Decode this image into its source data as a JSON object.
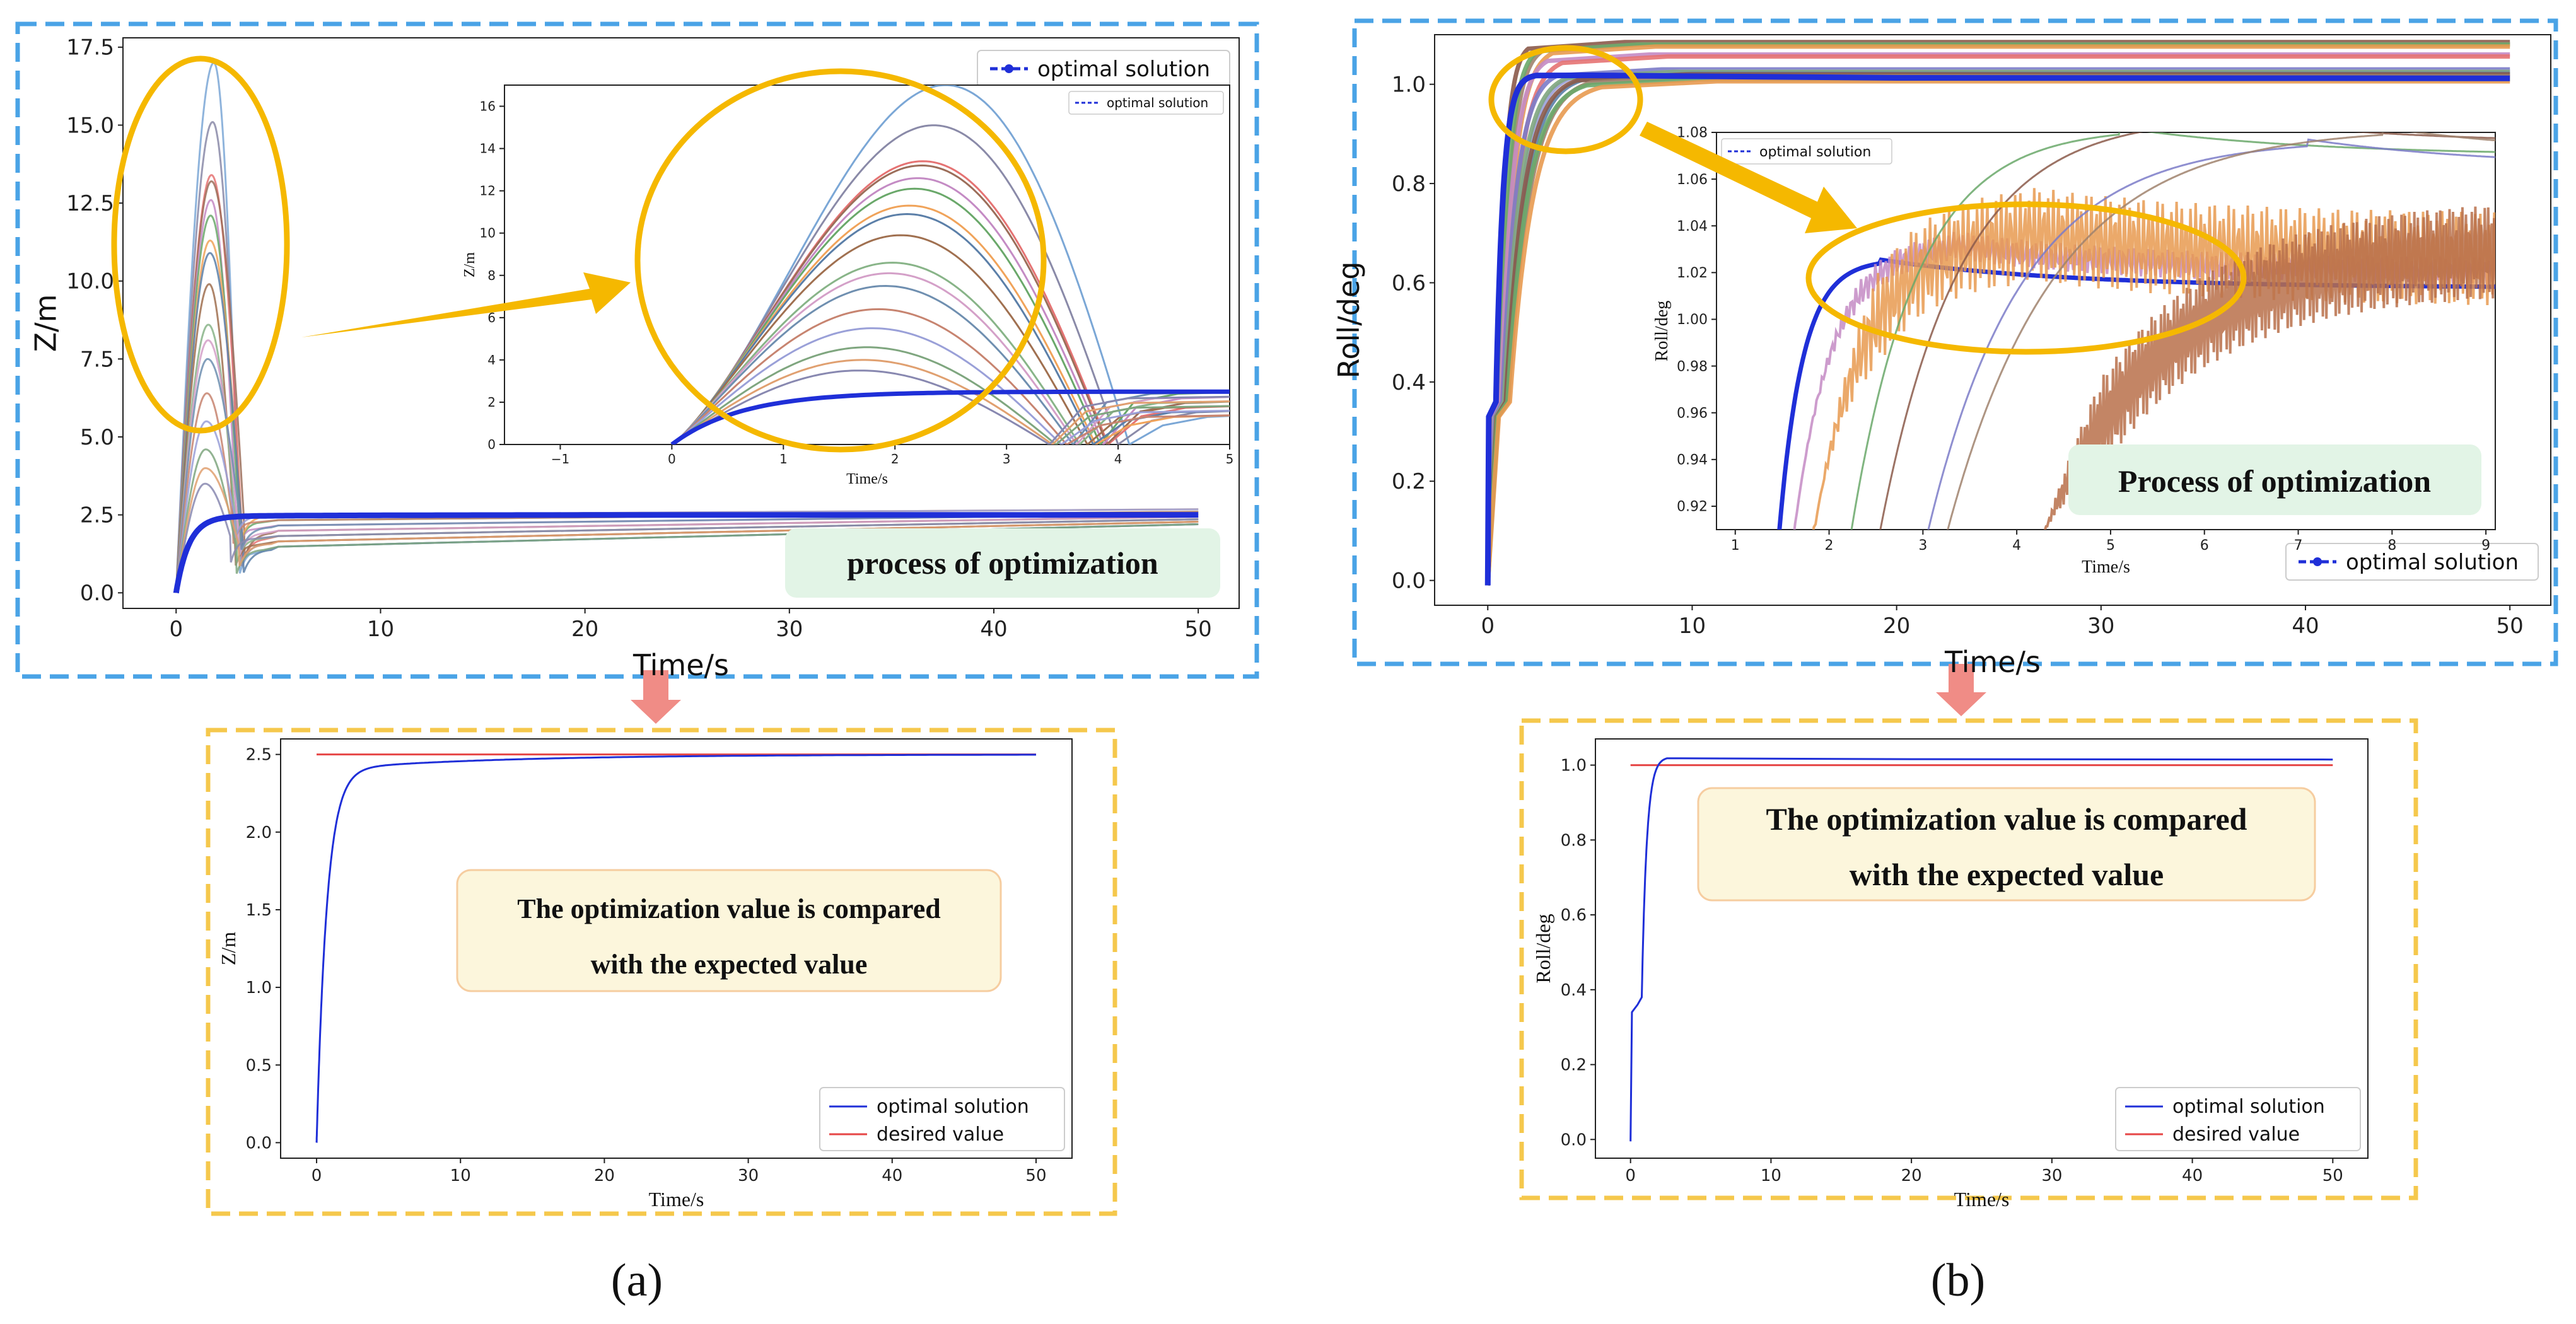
{
  "colors": {
    "dashed_blue": "#4aa3e6",
    "dashed_gold": "#f5c84c",
    "ellipse": "#f5b800",
    "arrow": "#f5b800",
    "down_arrow": "#f08c86",
    "optimal": "#1f2fd8",
    "desired": "#e64646",
    "green_box": "#e2f4e6",
    "yellow_box": "#fcf6dc",
    "yellow_box_border": "#f6cda0"
  },
  "panel_labels": {
    "a": "(a)",
    "b": "(b)"
  },
  "chart_data": [
    {
      "id": "a_top",
      "type": "line",
      "title": "",
      "xlabel": "Time/s",
      "ylabel": "Z/m",
      "xlim": [
        -2.6,
        52
      ],
      "ylim": [
        -0.5,
        17.8
      ],
      "xticks": [
        0,
        10,
        20,
        30,
        40,
        50
      ],
      "yticks": [
        0.0,
        2.5,
        5.0,
        7.5,
        10.0,
        12.5,
        15.0,
        17.5
      ],
      "ytick_labels": [
        "0.0",
        "2.5",
        "5.0",
        "7.5",
        "10.0",
        "12.5",
        "15.0",
        "17.5"
      ],
      "legend": [
        "optimal solution"
      ],
      "annotation": "process of optimization",
      "series": [
        {
          "name": "optimal solution",
          "final": 2.5
        }
      ],
      "candidate_peaks": [
        17.0,
        15.1,
        13.4,
        13.2,
        12.6,
        12.1,
        11.3,
        10.9,
        9.9,
        8.6,
        8.1,
        7.5,
        6.4,
        5.5,
        4.6,
        4.0,
        3.5
      ]
    },
    {
      "id": "a_inset",
      "type": "line",
      "xlabel": "Time/s",
      "ylabel": "Z/m",
      "xlim": [
        -1.5,
        5
      ],
      "ylim": [
        0,
        17
      ],
      "xticks": [
        -1,
        0,
        1,
        2,
        3,
        4,
        5
      ],
      "yticks": [
        0,
        2,
        4,
        6,
        8,
        10,
        12,
        14,
        16
      ],
      "legend": [
        "optimal solution"
      ]
    },
    {
      "id": "b_top",
      "type": "line",
      "xlabel": "Time/s",
      "ylabel": "Roll/deg",
      "xlim": [
        -2.6,
        52
      ],
      "ylim": [
        -0.05,
        1.1
      ],
      "xticks": [
        0,
        10,
        20,
        30,
        40,
        50
      ],
      "yticks": [
        0.0,
        0.2,
        0.4,
        0.6,
        0.8,
        1.0
      ],
      "ytick_labels": [
        "0.0",
        "0.2",
        "0.4",
        "0.6",
        "0.8",
        "1.0"
      ],
      "legend": [
        "optimal solution"
      ],
      "finals": [
        1.085,
        1.08,
        1.06,
        1.03,
        1.025,
        1.02,
        1.01
      ]
    },
    {
      "id": "b_inset",
      "type": "line",
      "xlabel": "Time/s",
      "ylabel": "Roll/deg",
      "xlim": [
        0.8,
        9.1
      ],
      "ylim": [
        0.91,
        1.08
      ],
      "xticks": [
        1,
        2,
        3,
        4,
        5,
        6,
        7,
        8,
        9
      ],
      "yticks": [
        0.92,
        0.94,
        0.96,
        0.98,
        1.0,
        1.02,
        1.04,
        1.06,
        1.08
      ],
      "ytick_labels": [
        "0.92",
        "0.94",
        "0.96",
        "0.98",
        "1.00",
        "1.02",
        "1.04",
        "1.06",
        "1.08"
      ],
      "legend": [
        "optimal solution"
      ],
      "annotation": "Process of optimization"
    },
    {
      "id": "a_bottom",
      "type": "line",
      "xlabel": "Time/s",
      "ylabel": "Z/m",
      "xlim": [
        -2.5,
        52.5
      ],
      "ylim": [
        -0.1,
        2.6
      ],
      "xticks": [
        0,
        10,
        20,
        30,
        40,
        50
      ],
      "yticks": [
        0.0,
        0.5,
        1.0,
        1.5,
        2.0,
        2.5
      ],
      "ytick_labels": [
        "0.0",
        "0.5",
        "1.0",
        "1.5",
        "2.0",
        "2.5"
      ],
      "legend": [
        "optimal solution",
        "desired value"
      ],
      "annotation_lines": [
        "The optimization value is compared",
        "with the expected value"
      ],
      "series": [
        {
          "name": "optimal solution",
          "final": 2.5
        },
        {
          "name": "desired value",
          "value": 2.5
        }
      ]
    },
    {
      "id": "b_bottom",
      "type": "line",
      "xlabel": "Time/s",
      "ylabel": "Roll/deg",
      "xlim": [
        -2.5,
        52.5
      ],
      "ylim": [
        -0.05,
        1.07
      ],
      "xticks": [
        0,
        10,
        20,
        30,
        40,
        50
      ],
      "yticks": [
        0.0,
        0.2,
        0.4,
        0.6,
        0.8,
        1.0
      ],
      "ytick_labels": [
        "0.0",
        "0.2",
        "0.4",
        "0.6",
        "0.8",
        "1.0"
      ],
      "legend": [
        "optimal solution",
        "desired value"
      ],
      "annotation_lines": [
        "The optimization value is compared",
        "with the expected value"
      ],
      "series": [
        {
          "name": "optimal solution",
          "final": 1.015
        },
        {
          "name": "desired value",
          "value": 1.0
        }
      ]
    }
  ]
}
